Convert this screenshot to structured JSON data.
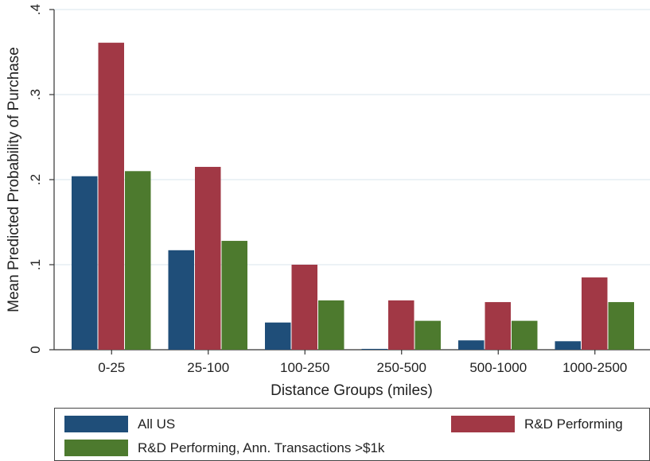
{
  "chart_data": {
    "type": "bar",
    "xlabel": "Distance Groups (miles)",
    "ylabel": "Mean Predicted Probability of Purchase",
    "ylim": [
      0,
      0.4
    ],
    "yticks": [
      0,
      0.1,
      0.2,
      0.3,
      0.4
    ],
    "ytick_labels": [
      "0",
      ".1",
      ".2",
      ".3",
      ".4"
    ],
    "grid": true,
    "categories": [
      "0-25",
      "25-100",
      "100-250",
      "250-500",
      "500-1000",
      "1000-2500"
    ],
    "series": [
      {
        "name": "All US",
        "color": "#1f4e79",
        "values": [
          0.204,
          0.117,
          0.032,
          0.001,
          0.011,
          0.01
        ]
      },
      {
        "name": "R&D Performing",
        "color": "#a13845",
        "values": [
          0.361,
          0.215,
          0.1,
          0.058,
          0.056,
          0.085
        ]
      },
      {
        "name": "R&D Performing, Ann. Transactions >$1k",
        "color": "#4d7a2e",
        "values": [
          0.21,
          0.128,
          0.058,
          0.034,
          0.034,
          0.056
        ]
      }
    ],
    "legend_position": "bottom"
  }
}
